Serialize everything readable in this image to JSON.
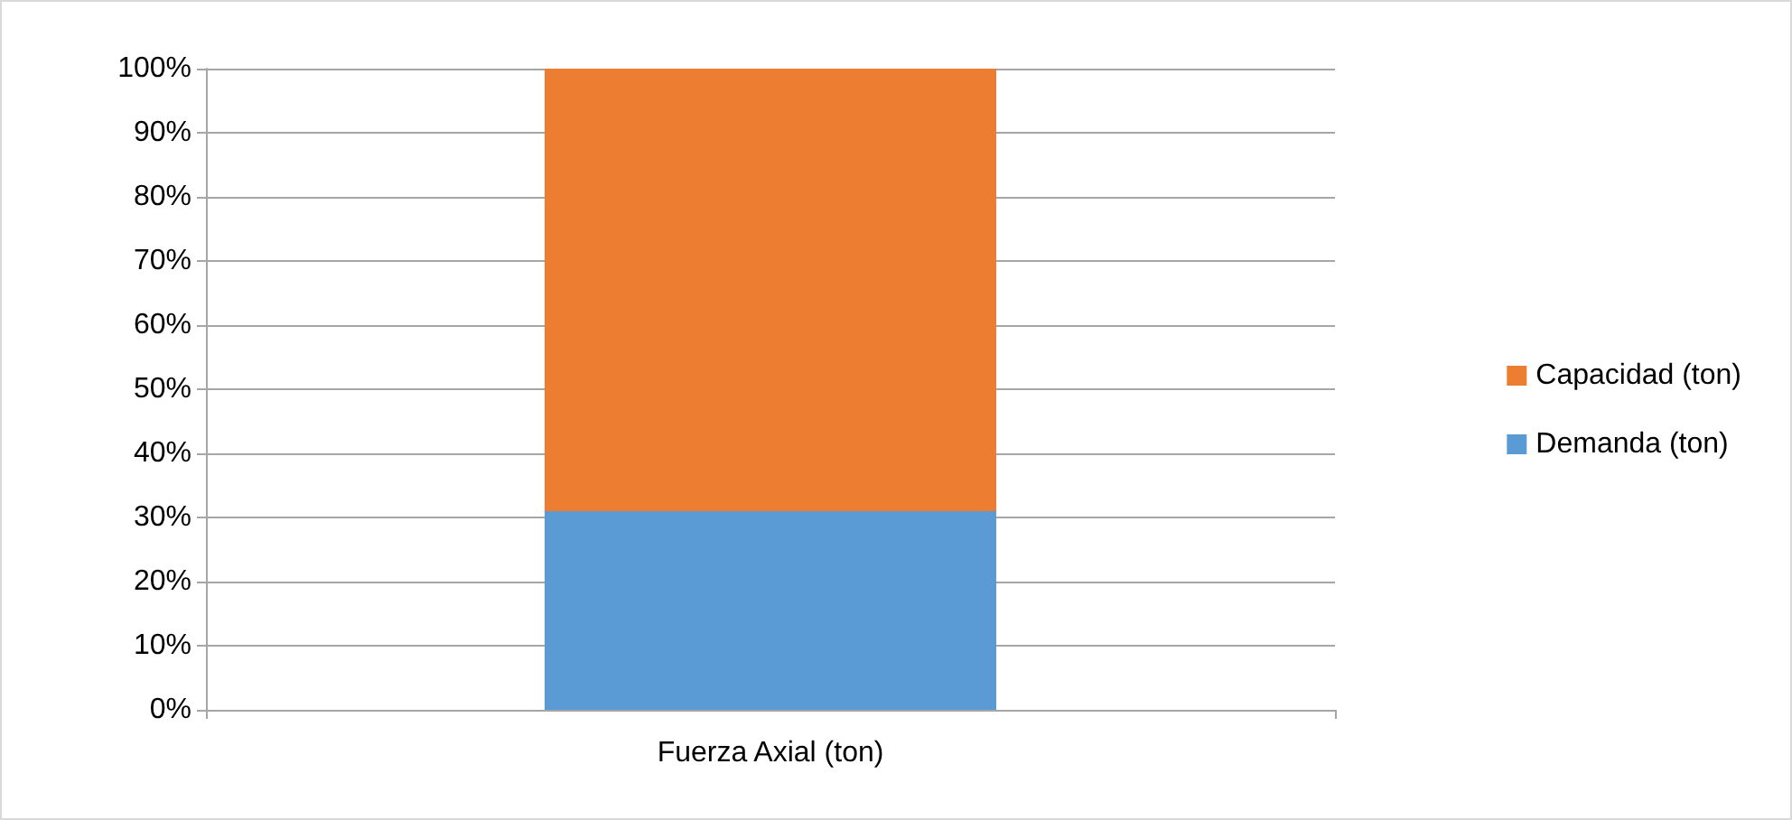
{
  "chart_data": {
    "type": "bar",
    "stacked": true,
    "categories": [
      "Fuerza Axial (ton)"
    ],
    "series": [
      {
        "name": "Demanda (ton)",
        "color": "#5b9bd5",
        "values": [
          31
        ]
      },
      {
        "name": "Capacidad (ton)",
        "color": "#ed7d31",
        "values": [
          69
        ]
      }
    ],
    "ylim": [
      0,
      100
    ],
    "yticks": [
      {
        "value": 0,
        "label": "0%"
      },
      {
        "value": 10,
        "label": "10%"
      },
      {
        "value": 20,
        "label": "20%"
      },
      {
        "value": 30,
        "label": "30%"
      },
      {
        "value": 40,
        "label": "40%"
      },
      {
        "value": 50,
        "label": "50%"
      },
      {
        "value": 60,
        "label": "60%"
      },
      {
        "value": 70,
        "label": "70%"
      },
      {
        "value": 80,
        "label": "80%"
      },
      {
        "value": 90,
        "label": "90%"
      },
      {
        "value": 100,
        "label": "100%"
      }
    ],
    "grid": "y",
    "legend": "right"
  }
}
